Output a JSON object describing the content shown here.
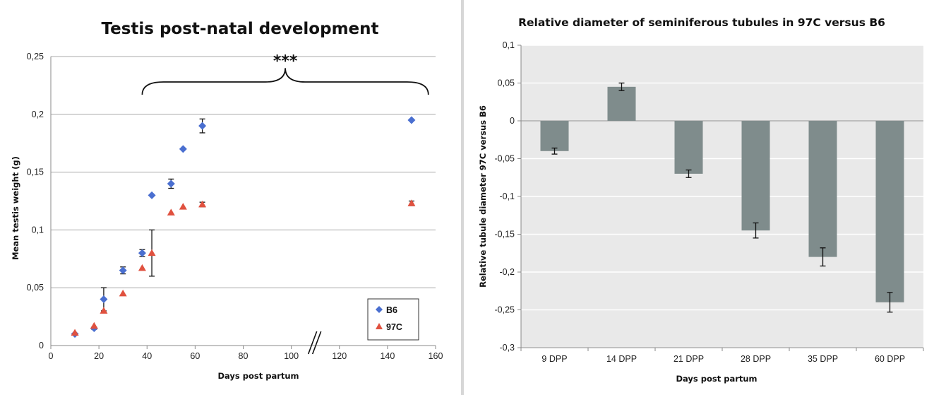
{
  "chart_data": [
    {
      "type": "scatter",
      "title": "Testis post-natal development",
      "xlabel": "Days post partum",
      "ylabel": "Mean testis weight (g)",
      "x_ticks": [
        "0",
        "20",
        "40",
        "60",
        "80",
        "100",
        "120",
        "140",
        "160"
      ],
      "y_ticks": [
        "0",
        "0,05",
        "0,1",
        "0,15",
        "0,2",
        "0,25"
      ],
      "xlim": [
        0,
        160
      ],
      "ylim": [
        0,
        0.25
      ],
      "grid": "horizontal",
      "axis_break_at": 110,
      "annotation": "***",
      "legend_position": "bottom-right",
      "series": [
        {
          "name": "B6",
          "color": "#4a6fd0",
          "marker": "diamond",
          "x": [
            10,
            18,
            22,
            30,
            38,
            42,
            50,
            55,
            63,
            150
          ],
          "y": [
            0.01,
            0.015,
            0.04,
            0.065,
            0.08,
            0.13,
            0.14,
            0.17,
            0.19,
            0.195
          ],
          "error": [
            0.0,
            0.001,
            0.01,
            0.003,
            0.003,
            0.0,
            0.004,
            0.0,
            0.006,
            0.0
          ]
        },
        {
          "name": "97C",
          "color": "#e0513f",
          "marker": "triangle",
          "x": [
            10,
            18,
            22,
            30,
            38,
            42,
            50,
            55,
            63,
            150
          ],
          "y": [
            0.011,
            0.017,
            0.03,
            0.045,
            0.067,
            0.08,
            0.115,
            0.12,
            0.122,
            0.123
          ],
          "error": [
            0.0,
            0.0,
            0.0,
            0.0,
            0.0,
            0.02,
            0.0,
            0.0,
            0.002,
            0.002
          ]
        }
      ]
    },
    {
      "type": "bar",
      "title": "Relative diameter of seminiferous tubules in 97C versus B6",
      "xlabel": "Days post partum",
      "ylabel": "Relative tubule diameter 97C versus B6",
      "categories": [
        "9 DPP",
        "14 DPP",
        "21 DPP",
        "28 DPP",
        "35 DPP",
        "60 DPP"
      ],
      "values": [
        -0.04,
        0.045,
        -0.07,
        -0.145,
        -0.18,
        -0.24
      ],
      "errors": [
        0.004,
        0.005,
        0.005,
        0.01,
        0.012,
        0.013
      ],
      "y_ticks": [
        "0,1",
        "0,05",
        "0",
        "-0,05",
        "-0,1",
        "-0,15",
        "-0,2",
        "-0,25",
        "-0,3"
      ],
      "ylim": [
        -0.3,
        0.1
      ],
      "grid": "horizontal",
      "bar_color": "#7f8c8c",
      "plot_background": "#e9e9e9"
    }
  ]
}
